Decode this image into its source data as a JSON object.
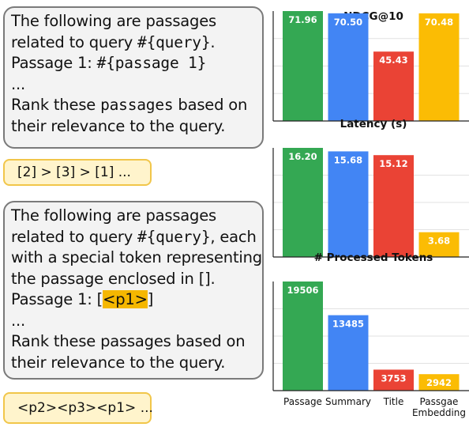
{
  "prompt1": {
    "line1": "The following are passages",
    "line2_prefix": "related to query ",
    "line2_code": "#{query}",
    "line2_suffix": ".",
    "line3_prefix": "Passage 1: ",
    "line3_code": "#{passage 1}",
    "line4": "...",
    "line5_prefix": "Rank these ",
    "line5_code": "passages",
    "line5_suffix": " based on",
    "line6": "their relevance to the query."
  },
  "output1": "[2] > [3] > [1] ...",
  "prompt2": {
    "line1": "The following are passages",
    "line2_prefix": "related to query ",
    "line2_code": "#{query}",
    "line2_suffix": ", each",
    "line3": "with a special token representing",
    "line4": "the passage enclosed in [].",
    "line5_prefix": "Passage 1: [",
    "line5_token": "<p1>",
    "line5_suffix": "]",
    "line6": "...",
    "line7": "Rank these passages based on",
    "line8": "their relevance to the query."
  },
  "output2": "<p2><p3><p1> ...",
  "colors": {
    "green": "#34a853",
    "blue": "#4285f4",
    "red": "#ea4335",
    "yellow": "#fbbc04"
  },
  "chart_data": [
    {
      "type": "bar",
      "title": "NDCG@10",
      "categories": [
        "Passage",
        "Summary",
        "Title",
        "Passgae Embedding"
      ],
      "values": [
        71.96,
        70.5,
        45.43,
        70.48
      ],
      "labels": [
        "71.96",
        "70.50",
        "45.43",
        "70.48"
      ]
    },
    {
      "type": "bar",
      "title": "Latency (s)",
      "categories": [
        "Passage",
        "Summary",
        "Title",
        "Passgae Embedding"
      ],
      "values": [
        16.2,
        15.68,
        15.12,
        3.68
      ],
      "labels": [
        "16.20",
        "15.68",
        "15.12",
        "3.68"
      ]
    },
    {
      "type": "bar",
      "title": "# Processed Tokens",
      "categories": [
        "Passage",
        "Summary",
        "Title",
        "Passgae Embedding"
      ],
      "values": [
        19506,
        13485,
        3753,
        2942
      ],
      "labels": [
        "19506",
        "13485",
        "3753",
        "2942"
      ]
    }
  ],
  "x_labels": [
    [
      "Passage"
    ],
    [
      "Summary"
    ],
    [
      "Title"
    ],
    [
      "Passgae",
      "Embedding"
    ]
  ]
}
